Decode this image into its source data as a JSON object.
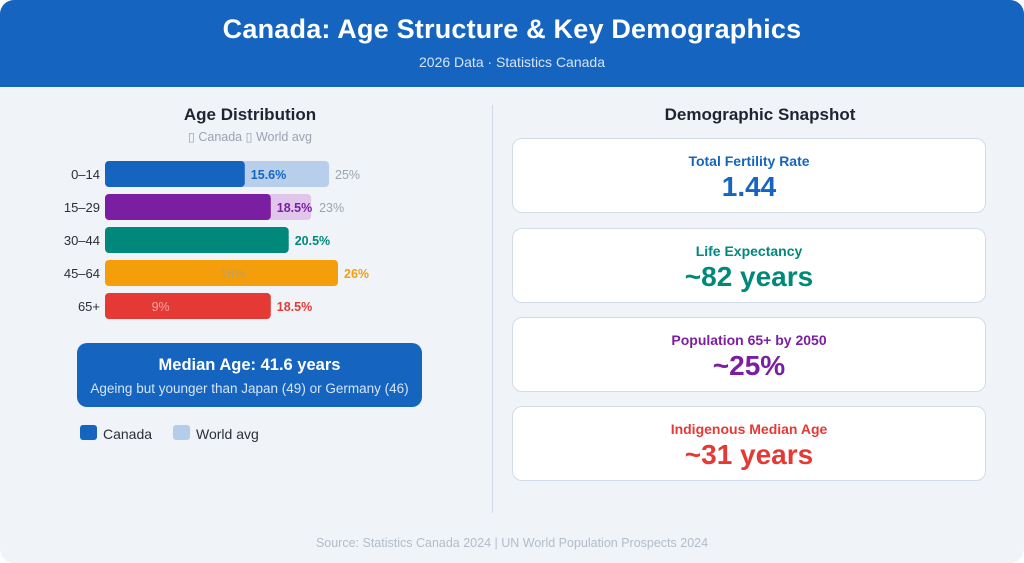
{
  "header": {
    "title": "Canada: Age Structure & Key Demographics",
    "subtitle": "2026 Data · Statistics Canada"
  },
  "left": {
    "title": "Age Distribution",
    "subtitle": "▯ Canada ▯ World avg"
  },
  "chart_data": {
    "type": "bar",
    "orientation": "horizontal",
    "title": "Age Distribution",
    "categories": [
      "0–14",
      "15–29",
      "30–44",
      "45–64",
      "65+"
    ],
    "series": [
      {
        "name": "Canada",
        "values": [
          15.6,
          18.5,
          20.5,
          26,
          18.5
        ],
        "labels": [
          "15.6%",
          "18.5%",
          "20.5%",
          "26%",
          "18.5%"
        ]
      },
      {
        "name": "World avg",
        "values": [
          25,
          23,
          20.5,
          18,
          9
        ],
        "labels": [
          "25%",
          "23%",
          "",
          "18%",
          "9%"
        ]
      }
    ],
    "bar_colors": [
      "#1565c0",
      "#7b1fa2",
      "#00897b",
      "#f59e0b",
      "#e53935"
    ],
    "world_colors": [
      "#b8cfec",
      "#e0c6ea",
      "#b2dfd9",
      "#fde3b0",
      "#f7c0bf"
    ],
    "xlim": [
      0,
      26
    ],
    "legend": "bottom-left"
  },
  "median": {
    "title": "Median Age: 41.6 years",
    "note": "Ageing but younger than Japan (49) or Germany (46)"
  },
  "legend": {
    "canada_label": "Canada",
    "world_label": "World avg",
    "canada_color": "#1565c0",
    "world_color": "#b3cdea"
  },
  "right": {
    "title": "Demographic Snapshot",
    "stats": [
      {
        "label": "Total Fertility Rate",
        "value": "1.44",
        "color": "#1565c0"
      },
      {
        "label": "Life Expectancy",
        "value": "~82 years",
        "color": "#00897b"
      },
      {
        "label": "Population 65+ by 2050",
        "value": "~25%",
        "color": "#7b1fa2"
      },
      {
        "label": "Indigenous Median Age",
        "value": "~31 years",
        "color": "#e53935"
      }
    ]
  },
  "footer": {
    "source": "Source: Statistics Canada 2024 | UN World Population Prospects 2024"
  }
}
